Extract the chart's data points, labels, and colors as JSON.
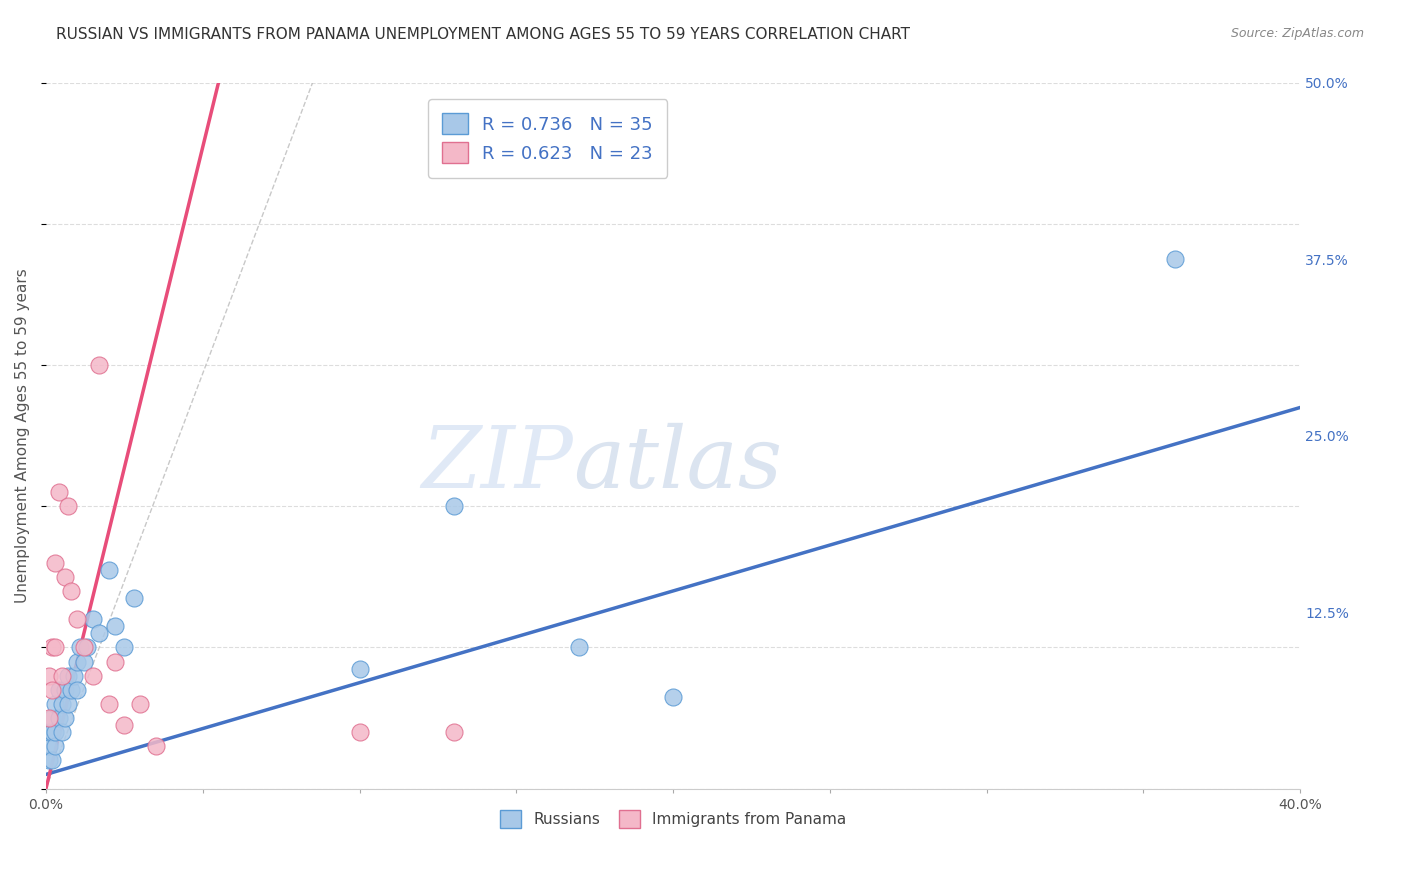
{
  "title": "RUSSIAN VS IMMIGRANTS FROM PANAMA UNEMPLOYMENT AMONG AGES 55 TO 59 YEARS CORRELATION CHART",
  "source": "Source: ZipAtlas.com",
  "ylabel": "Unemployment Among Ages 55 to 59 years",
  "xlim": [
    0.0,
    0.4
  ],
  "ylim": [
    0.0,
    0.5
  ],
  "xticks": [
    0.0,
    0.05,
    0.1,
    0.15,
    0.2,
    0.25,
    0.3,
    0.35,
    0.4
  ],
  "xtick_labels_show": [
    "0.0%",
    "",
    "",
    "",
    "",
    "",
    "",
    "",
    "40.0%"
  ],
  "yticks_right": [
    0.125,
    0.25,
    0.375,
    0.5
  ],
  "ytick_labels_right": [
    "12.5%",
    "25.0%",
    "37.5%",
    "50.0%"
  ],
  "russian_x": [
    0.001,
    0.001,
    0.001,
    0.002,
    0.002,
    0.002,
    0.003,
    0.003,
    0.003,
    0.004,
    0.004,
    0.005,
    0.005,
    0.006,
    0.006,
    0.007,
    0.007,
    0.008,
    0.009,
    0.01,
    0.01,
    0.011,
    0.012,
    0.013,
    0.015,
    0.017,
    0.02,
    0.022,
    0.025,
    0.028,
    0.1,
    0.13,
    0.17,
    0.2,
    0.36
  ],
  "russian_y": [
    0.02,
    0.03,
    0.04,
    0.02,
    0.04,
    0.05,
    0.03,
    0.04,
    0.06,
    0.05,
    0.07,
    0.04,
    0.06,
    0.05,
    0.07,
    0.06,
    0.08,
    0.07,
    0.08,
    0.09,
    0.07,
    0.1,
    0.09,
    0.1,
    0.12,
    0.11,
    0.155,
    0.115,
    0.1,
    0.135,
    0.085,
    0.2,
    0.1,
    0.065,
    0.375
  ],
  "panama_x": [
    0.001,
    0.001,
    0.002,
    0.002,
    0.003,
    0.003,
    0.004,
    0.005,
    0.006,
    0.007,
    0.008,
    0.01,
    0.012,
    0.015,
    0.017,
    0.02,
    0.022,
    0.025,
    0.03,
    0.035,
    0.1,
    0.13,
    0.15
  ],
  "panama_y": [
    0.05,
    0.08,
    0.07,
    0.1,
    0.1,
    0.16,
    0.21,
    0.08,
    0.15,
    0.2,
    0.14,
    0.12,
    0.1,
    0.08,
    0.3,
    0.06,
    0.09,
    0.045,
    0.06,
    0.03,
    0.04,
    0.04,
    0.45
  ],
  "russian_R": 0.736,
  "russian_N": 35,
  "panama_R": 0.623,
  "panama_N": 23,
  "russian_scatter_color": "#a8c8e8",
  "russian_scatter_edge": "#5b9bd5",
  "russian_line_color": "#4472c4",
  "panama_scatter_color": "#f4b8c8",
  "panama_scatter_edge": "#e07090",
  "panama_line_color": "#e84d7a",
  "ref_line_color": "#bbbbbb",
  "watermark_zip": "ZIP",
  "watermark_atlas": "atlas",
  "title_fontsize": 11,
  "axis_label_fontsize": 11,
  "tick_fontsize": 10,
  "legend_fontsize": 13,
  "legend_R_color": "#4472c4",
  "legend_N_color": "#e84d7a"
}
